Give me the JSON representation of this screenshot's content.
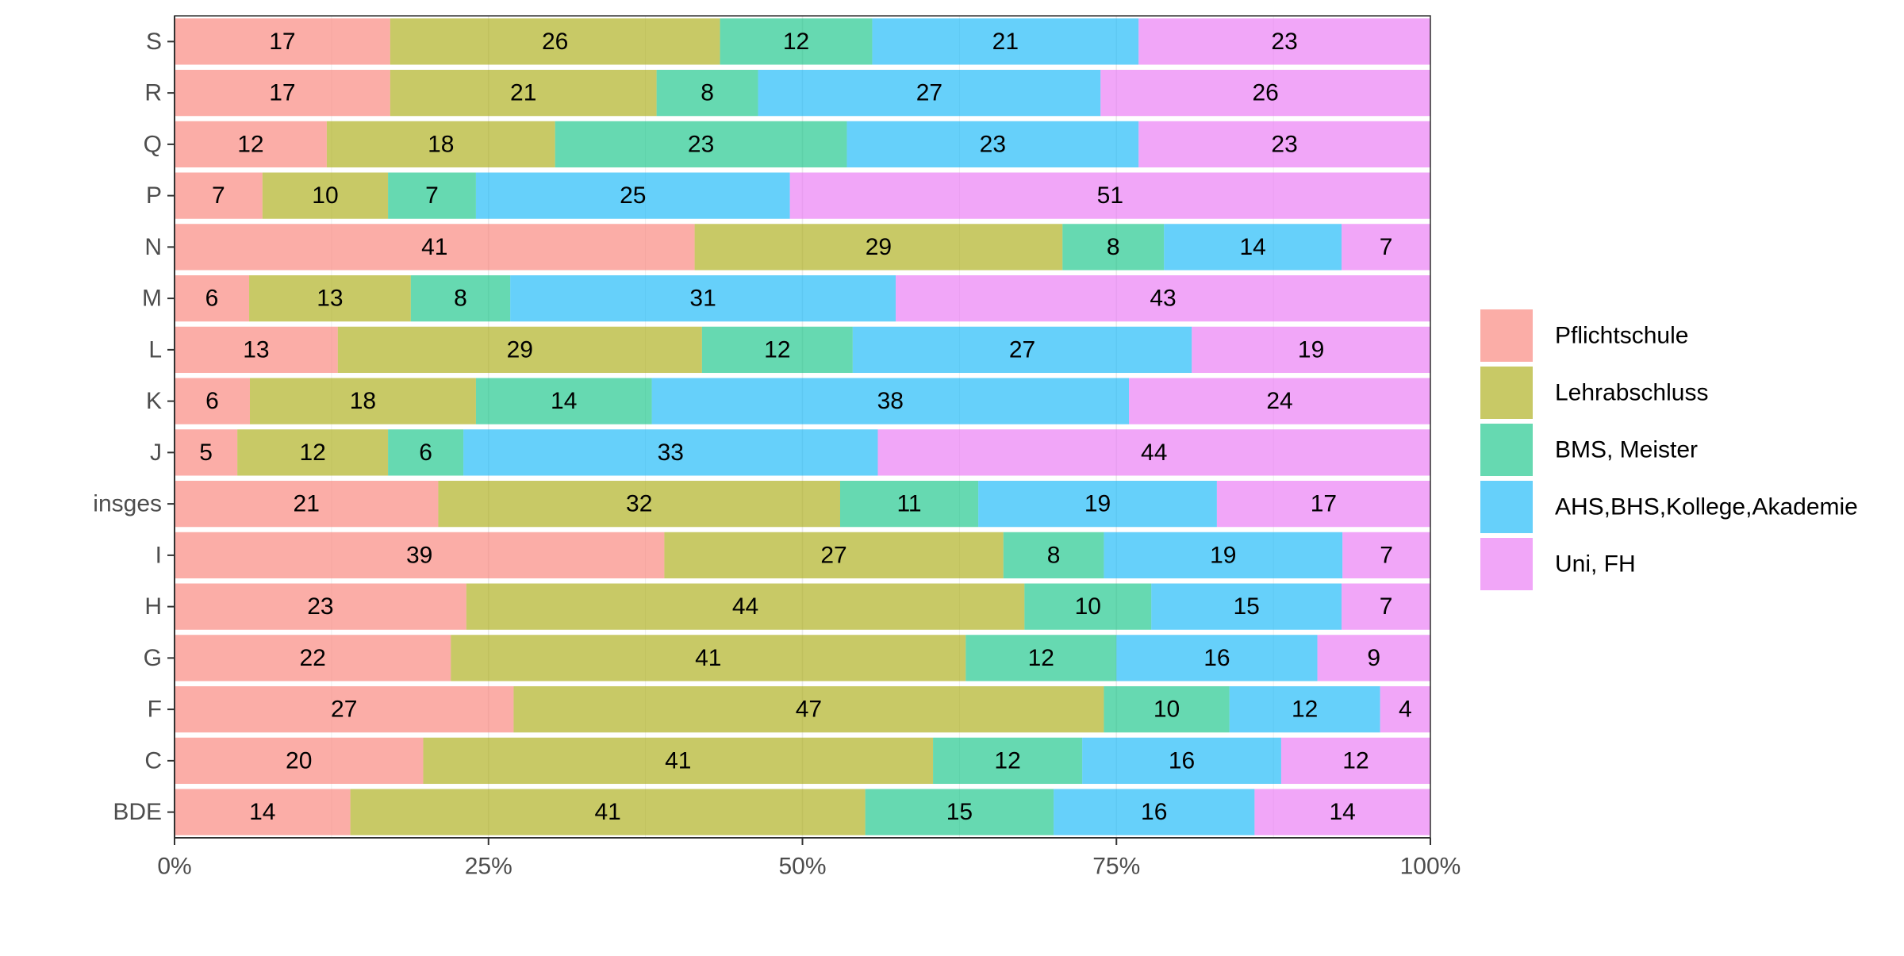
{
  "chart_data": {
    "type": "bar",
    "orientation": "horizontal",
    "stacked": "percent",
    "categories": [
      "BDE",
      "C",
      "F",
      "G",
      "H",
      "I",
      "insges",
      "J",
      "K",
      "L",
      "M",
      "N",
      "P",
      "Q",
      "R",
      "S"
    ],
    "series": [
      {
        "name": "Pflichtschule",
        "color": "#F8766D",
        "values": [
          14,
          20,
          27,
          22,
          23,
          39,
          21,
          5,
          6,
          13,
          6,
          41,
          7,
          12,
          17,
          17
        ]
      },
      {
        "name": "Lehrabschluss",
        "color": "#A3A500",
        "values": [
          41,
          41,
          47,
          41,
          44,
          27,
          32,
          12,
          18,
          29,
          13,
          29,
          10,
          18,
          21,
          26
        ]
      },
      {
        "name": "BMS, Meister",
        "color": "#00BF7D",
        "values": [
          15,
          12,
          10,
          12,
          10,
          8,
          11,
          6,
          14,
          12,
          8,
          8,
          7,
          23,
          8,
          12
        ]
      },
      {
        "name": "AHS,BHS,Kollege,Akademie",
        "color": "#00B0F6",
        "values": [
          16,
          16,
          12,
          16,
          15,
          19,
          19,
          33,
          38,
          27,
          31,
          14,
          25,
          23,
          27,
          21
        ]
      },
      {
        "name": "Uni, FH",
        "color": "#E76BF3",
        "values": [
          14,
          12,
          4,
          9,
          7,
          7,
          17,
          44,
          24,
          19,
          43,
          7,
          51,
          23,
          26,
          23
        ]
      }
    ],
    "x_ticks": [
      "0%",
      "25%",
      "50%",
      "75%",
      "100%"
    ],
    "xlim": [
      0,
      1
    ],
    "grid": true,
    "legend_position": "right",
    "title": "",
    "xlabel": "",
    "ylabel": ""
  }
}
